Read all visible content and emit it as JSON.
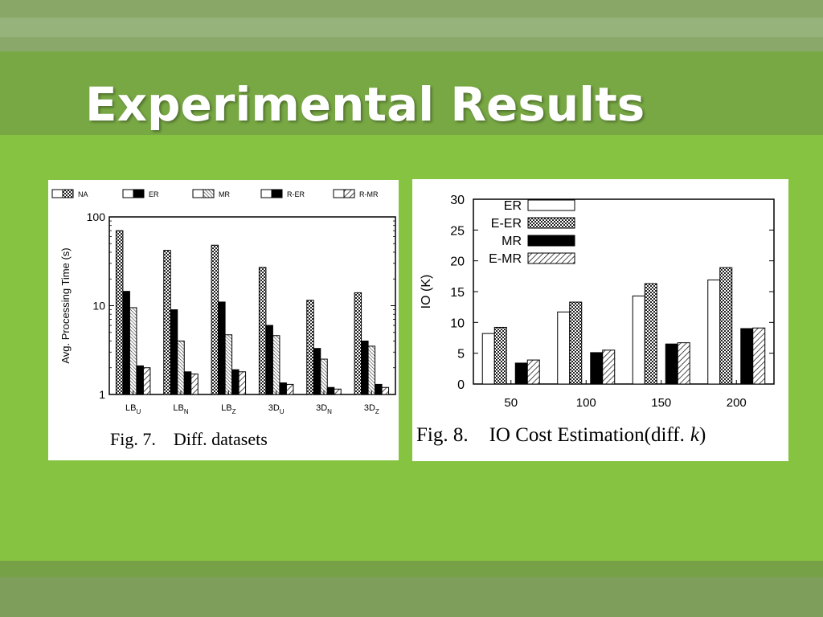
{
  "slide": {
    "title": "Experimental Results",
    "colors": {
      "background": "#86c341",
      "header_band": "#78a844",
      "title_text": "#ffffff"
    }
  },
  "chart_data": [
    {
      "type": "bar",
      "figure_label": "Fig. 7.",
      "caption": "Diff. datasets",
      "ylabel": "Avg. Processing Time (s)",
      "yscale": "log",
      "ylim": [
        1,
        100
      ],
      "yticks": [
        "1",
        "10",
        "100"
      ],
      "legend_position": "top",
      "categories": [
        {
          "base": "LB",
          "sub": "U"
        },
        {
          "base": "LB",
          "sub": "N"
        },
        {
          "base": "LB",
          "sub": "Z"
        },
        {
          "base": "3D",
          "sub": "U"
        },
        {
          "base": "3D",
          "sub": "N"
        },
        {
          "base": "3D",
          "sub": "Z"
        }
      ],
      "series": [
        {
          "name": "NA",
          "pattern": "checker",
          "values": [
            70,
            42,
            48,
            27,
            11.5,
            14
          ]
        },
        {
          "name": "ER",
          "pattern": "solid",
          "values": [
            14.5,
            9,
            11,
            6,
            3.3,
            4
          ]
        },
        {
          "name": "MR",
          "pattern": "hatch-dense",
          "values": [
            9.5,
            4,
            4.7,
            4.6,
            2.5,
            3.5
          ]
        },
        {
          "name": "R-ER",
          "pattern": "white-black",
          "values": [
            2.1,
            1.8,
            1.9,
            1.35,
            1.2,
            1.3
          ]
        },
        {
          "name": "R-MR",
          "pattern": "hatch",
          "values": [
            2.0,
            1.7,
            1.8,
            1.3,
            1.15,
            1.2
          ]
        }
      ]
    },
    {
      "type": "bar",
      "figure_label": "Fig. 8.",
      "caption": "IO Cost Estimation(diff.",
      "caption_var": "k",
      "caption_end": ")",
      "ylabel": "IO (K)",
      "ylim": [
        0,
        30
      ],
      "yticks": [
        0,
        5,
        10,
        15,
        20,
        25,
        30
      ],
      "legend_position": "top-left",
      "categories": [
        "50",
        "100",
        "150",
        "200"
      ],
      "series": [
        {
          "name": "ER",
          "pattern": "white",
          "values": [
            8.2,
            11.7,
            14.3,
            16.9
          ]
        },
        {
          "name": "E-ER",
          "pattern": "checker",
          "values": [
            9.2,
            13.3,
            16.3,
            18.9
          ]
        },
        {
          "name": "MR",
          "pattern": "solid",
          "values": [
            3.4,
            5.1,
            6.5,
            9.0
          ]
        },
        {
          "name": "E-MR",
          "pattern": "hatch",
          "values": [
            3.9,
            5.5,
            6.7,
            9.1
          ]
        }
      ]
    }
  ]
}
